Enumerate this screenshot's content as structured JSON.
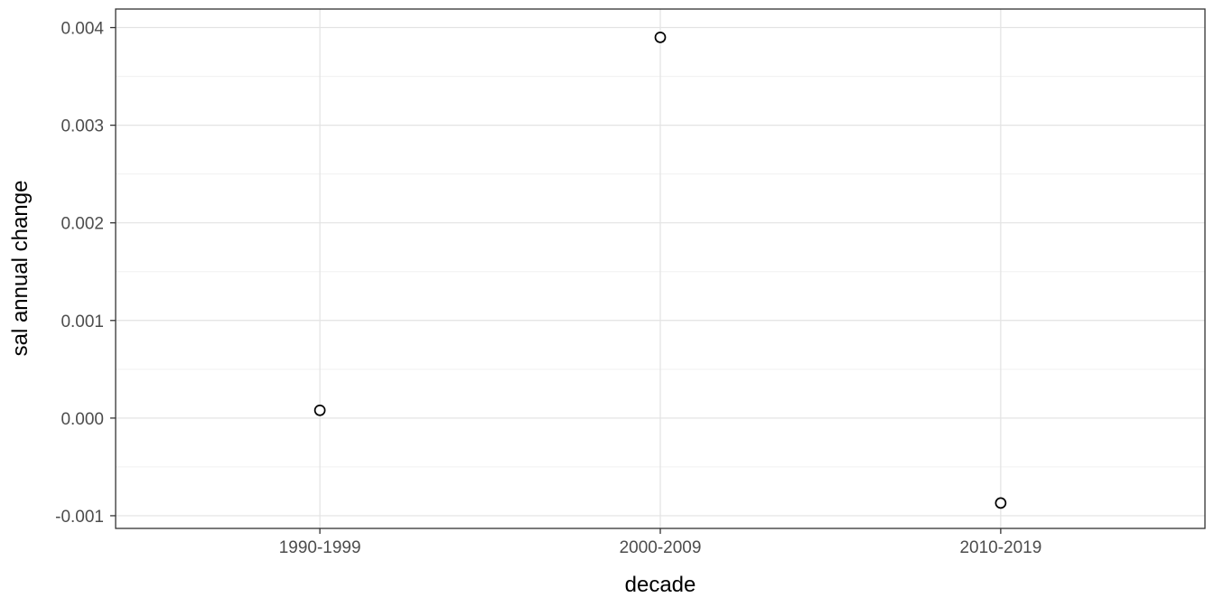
{
  "chart_data": {
    "type": "scatter",
    "title": "",
    "xlabel": "decade",
    "ylabel": "sal annual change",
    "categories": [
      "1990-1999",
      "2000-2009",
      "2010-2019"
    ],
    "values": [
      8e-05,
      0.0039,
      -0.00087
    ],
    "yticks": [
      -0.001,
      0.0,
      0.001,
      0.002,
      0.003,
      0.004
    ],
    "ytick_labels": [
      "-0.001",
      "0.000",
      "0.001",
      "0.002",
      "0.003",
      "0.004"
    ],
    "yminor": [
      -0.0005,
      0.0005,
      0.0015,
      0.0025,
      0.0035
    ],
    "ylim": [
      -0.00113,
      0.00419
    ],
    "grid": true,
    "legend": "none",
    "point_style": "open-circle",
    "colors": {
      "background": "#ffffff",
      "panel_background": "#ffffff",
      "grid_major": "#e3e3e3",
      "grid_minor": "#f0f0f0",
      "panel_border": "#333333",
      "tick_mark": "#333333",
      "tick_label": "#4d4d4d",
      "axis_title": "#000000",
      "point_stroke": "#000000",
      "point_fill": "#ffffff"
    }
  }
}
